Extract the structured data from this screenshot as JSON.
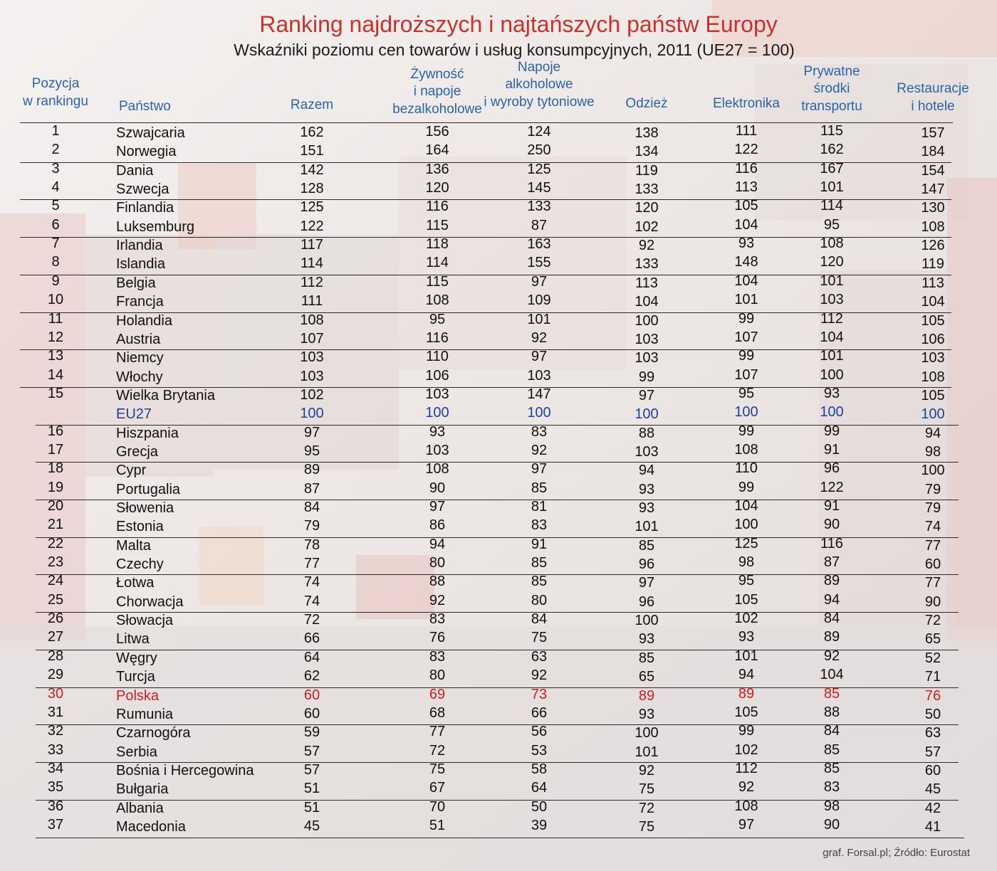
{
  "chart_data": {
    "type": "table",
    "title": "Ranking najdroższych i najtańszych państw Europy",
    "subtitle": "Wskaźniki poziomu cen towarów i usług konsumpcyjnych, 2011 (UE27 = 100)",
    "columns": [
      {
        "key": "rank",
        "label_lines": [
          "Pozycja",
          "w rankingu"
        ]
      },
      {
        "key": "country",
        "label_lines": [
          "Państwo"
        ]
      },
      {
        "key": "razem",
        "label_lines": [
          "Razem"
        ]
      },
      {
        "key": "zywnosc",
        "label_lines": [
          "Żywność",
          "i napoje",
          "bezalkoholowe"
        ]
      },
      {
        "key": "napoje",
        "label_lines": [
          "Napoje",
          "alkoholowe",
          "i wyroby tytoniowe"
        ]
      },
      {
        "key": "odziez",
        "label_lines": [
          "Odzież"
        ]
      },
      {
        "key": "elektronika",
        "label_lines": [
          "Elektronika"
        ]
      },
      {
        "key": "transport",
        "label_lines": [
          "Prywatne",
          "środki",
          "transportu"
        ]
      },
      {
        "key": "restauracje",
        "label_lines": [
          "Restauracje",
          "i hotele"
        ]
      }
    ],
    "rows": [
      {
        "rank": "1",
        "country": "Szwajcaria",
        "values": [
          162,
          156,
          124,
          138,
          111,
          115,
          157
        ]
      },
      {
        "rank": "2",
        "country": "Norwegia",
        "values": [
          151,
          164,
          250,
          134,
          122,
          162,
          184
        ]
      },
      {
        "rank": "3",
        "country": "Dania",
        "values": [
          142,
          136,
          125,
          119,
          116,
          167,
          154
        ]
      },
      {
        "rank": "4",
        "country": "Szwecja",
        "values": [
          128,
          120,
          145,
          133,
          113,
          101,
          147
        ]
      },
      {
        "rank": "5",
        "country": "Finlandia",
        "values": [
          125,
          116,
          133,
          120,
          105,
          114,
          130
        ]
      },
      {
        "rank": "6",
        "country": "Luksemburg",
        "values": [
          122,
          115,
          87,
          102,
          104,
          95,
          108
        ]
      },
      {
        "rank": "7",
        "country": "Irlandia",
        "values": [
          117,
          118,
          163,
          92,
          93,
          108,
          126
        ]
      },
      {
        "rank": "8",
        "country": "Islandia",
        "values": [
          114,
          114,
          155,
          133,
          148,
          120,
          119
        ]
      },
      {
        "rank": "9",
        "country": "Belgia",
        "values": [
          112,
          115,
          97,
          113,
          104,
          101,
          113
        ]
      },
      {
        "rank": "10",
        "country": "Francja",
        "values": [
          111,
          108,
          109,
          104,
          101,
          103,
          104
        ]
      },
      {
        "rank": "11",
        "country": "Holandia",
        "values": [
          108,
          95,
          101,
          100,
          99,
          112,
          105
        ]
      },
      {
        "rank": "12",
        "country": "Austria",
        "values": [
          107,
          116,
          92,
          103,
          107,
          104,
          106
        ]
      },
      {
        "rank": "13",
        "country": "Niemcy",
        "values": [
          103,
          110,
          97,
          103,
          99,
          101,
          103
        ]
      },
      {
        "rank": "14",
        "country": "Włochy",
        "values": [
          103,
          106,
          103,
          99,
          107,
          100,
          108
        ]
      },
      {
        "rank": "15",
        "country": "Wielka Brytania",
        "values": [
          102,
          103,
          147,
          97,
          95,
          93,
          105
        ]
      },
      {
        "rank": "",
        "country": "EU27",
        "values": [
          100,
          100,
          100,
          100,
          100,
          100,
          100
        ],
        "highlight": "eu"
      },
      {
        "rank": "16",
        "country": "Hiszpania",
        "values": [
          97,
          93,
          83,
          88,
          99,
          99,
          94
        ]
      },
      {
        "rank": "17",
        "country": "Grecja",
        "values": [
          95,
          103,
          92,
          103,
          108,
          91,
          98
        ]
      },
      {
        "rank": "18",
        "country": "Cypr",
        "values": [
          89,
          108,
          97,
          94,
          110,
          96,
          100
        ]
      },
      {
        "rank": "19",
        "country": "Portugalia",
        "values": [
          87,
          90,
          85,
          93,
          99,
          122,
          79
        ]
      },
      {
        "rank": "20",
        "country": "Słowenia",
        "values": [
          84,
          97,
          81,
          93,
          104,
          91,
          79
        ]
      },
      {
        "rank": "21",
        "country": "Estonia",
        "values": [
          79,
          86,
          83,
          101,
          100,
          90,
          74
        ]
      },
      {
        "rank": "22",
        "country": "Malta",
        "values": [
          78,
          94,
          91,
          85,
          125,
          116,
          77
        ]
      },
      {
        "rank": "23",
        "country": "Czechy",
        "values": [
          77,
          80,
          85,
          96,
          98,
          87,
          60
        ]
      },
      {
        "rank": "24",
        "country": "Łotwa",
        "values": [
          74,
          88,
          85,
          97,
          95,
          89,
          77
        ]
      },
      {
        "rank": "25",
        "country": "Chorwacja",
        "values": [
          74,
          92,
          80,
          96,
          105,
          94,
          90
        ]
      },
      {
        "rank": "26",
        "country": "Słowacja",
        "values": [
          72,
          83,
          84,
          100,
          102,
          84,
          72
        ]
      },
      {
        "rank": "27",
        "country": "Litwa",
        "values": [
          66,
          76,
          75,
          93,
          93,
          89,
          65
        ]
      },
      {
        "rank": "28",
        "country": "Węgry",
        "values": [
          64,
          83,
          63,
          85,
          101,
          92,
          52
        ]
      },
      {
        "rank": "29",
        "country": "Turcja",
        "values": [
          62,
          80,
          92,
          65,
          94,
          104,
          71
        ]
      },
      {
        "rank": "30",
        "country": "Polska",
        "values": [
          60,
          69,
          73,
          89,
          89,
          85,
          76
        ],
        "highlight": "pl"
      },
      {
        "rank": "31",
        "country": "Rumunia",
        "values": [
          60,
          68,
          66,
          93,
          105,
          88,
          50
        ]
      },
      {
        "rank": "32",
        "country": "Czarnogóra",
        "values": [
          59,
          77,
          56,
          100,
          99,
          84,
          63
        ]
      },
      {
        "rank": "33",
        "country": "Serbia",
        "values": [
          57,
          72,
          53,
          101,
          102,
          85,
          57
        ]
      },
      {
        "rank": "34",
        "country": "Bośnia i Hercegowina",
        "values": [
          57,
          75,
          58,
          92,
          112,
          85,
          60
        ]
      },
      {
        "rank": "35",
        "country": "Bułgaria",
        "values": [
          51,
          67,
          64,
          75,
          92,
          83,
          45
        ]
      },
      {
        "rank": "36",
        "country": "Albania",
        "values": [
          51,
          70,
          50,
          72,
          108,
          98,
          42
        ]
      },
      {
        "rank": "37",
        "country": "Macedonia",
        "values": [
          45,
          51,
          39,
          75,
          97,
          90,
          41
        ]
      }
    ],
    "source": "graf. Forsal.pl; Źródło: Eurostat",
    "colors": {
      "title": "#c8322a",
      "header": "#2a63a8",
      "eu": "#1f3f9e",
      "pl": "#cc1e1e"
    }
  }
}
